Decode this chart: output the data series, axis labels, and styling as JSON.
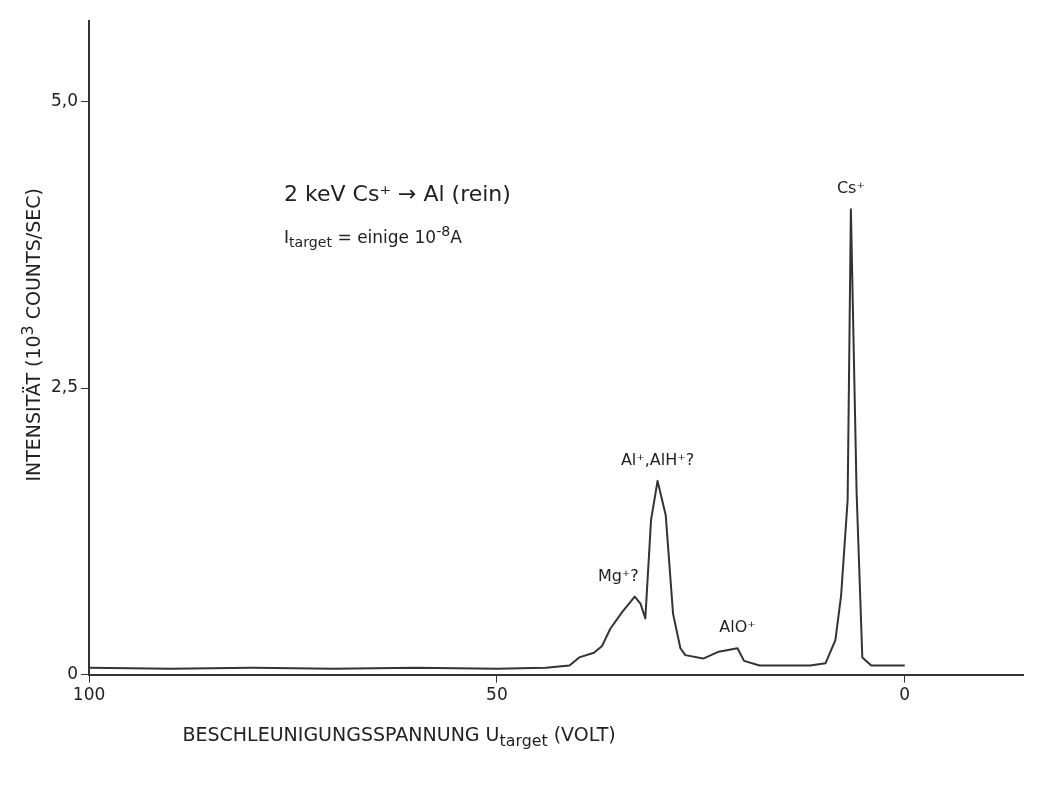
{
  "chart_data": {
    "type": "line",
    "xlabel": "BESCHLEUNIGUNGSSPANNUNG U$_{target}$   (VOLT)",
    "ylabel": "INTENSITÄT   (10$^{3}$ COUNTS/SEC)",
    "x": [
      100,
      90,
      80,
      70,
      60,
      50,
      44,
      41.1,
      39.9,
      38.1,
      37.1,
      36.1,
      34.6,
      33.1,
      32.4,
      31.8,
      31.1,
      30.3,
      29.3,
      28.4,
      27.5,
      26.9,
      24.7,
      22.8,
      20.5,
      19.7,
      17.8,
      11.6,
      9.7,
      8.5,
      7.8,
      7.0,
      6.6,
      5.9,
      5.2,
      4.1,
      0
    ],
    "series": [
      {
        "color": "#333333",
        "values": [
          0.06,
          0.05,
          0.06,
          0.05,
          0.06,
          0.05,
          0.06,
          0.08,
          0.15,
          0.19,
          0.25,
          0.4,
          0.55,
          0.68,
          0.62,
          0.49,
          1.35,
          1.69,
          1.39,
          0.53,
          0.23,
          0.17,
          0.14,
          0.2,
          0.23,
          0.12,
          0.08,
          0.08,
          0.1,
          0.3,
          0.69,
          1.52,
          4.06,
          1.59,
          0.15,
          0.08,
          0.08
        ]
      }
    ],
    "xlim": [
      100,
      -14.5
    ],
    "xticks": [
      100,
      50,
      0
    ],
    "ylim": [
      0,
      5.7
    ],
    "yticks": [
      {
        "value": 0,
        "label": "0"
      },
      {
        "value": 2.5,
        "label": "2,5"
      },
      {
        "value": 5,
        "label": "5,0"
      }
    ],
    "grid": false,
    "legend": false,
    "marker": "none",
    "line_style": "solid",
    "annotations": [
      "2 keV Cs⁺ → Al (rein)",
      "I$_{target}$  =  einige 10$^{-8}$A",
      {
        "text": "Cs⁺",
        "x": 6.6,
        "y": 4.06
      },
      {
        "text": "Al⁺,AlH⁺?",
        "x": 30.3,
        "y": 1.69
      },
      {
        "text": "Mg⁺?",
        "x": 33.1,
        "y": 0.68
      },
      {
        "text": "AlO⁺",
        "x": 20.5,
        "y": 0.23
      }
    ]
  }
}
